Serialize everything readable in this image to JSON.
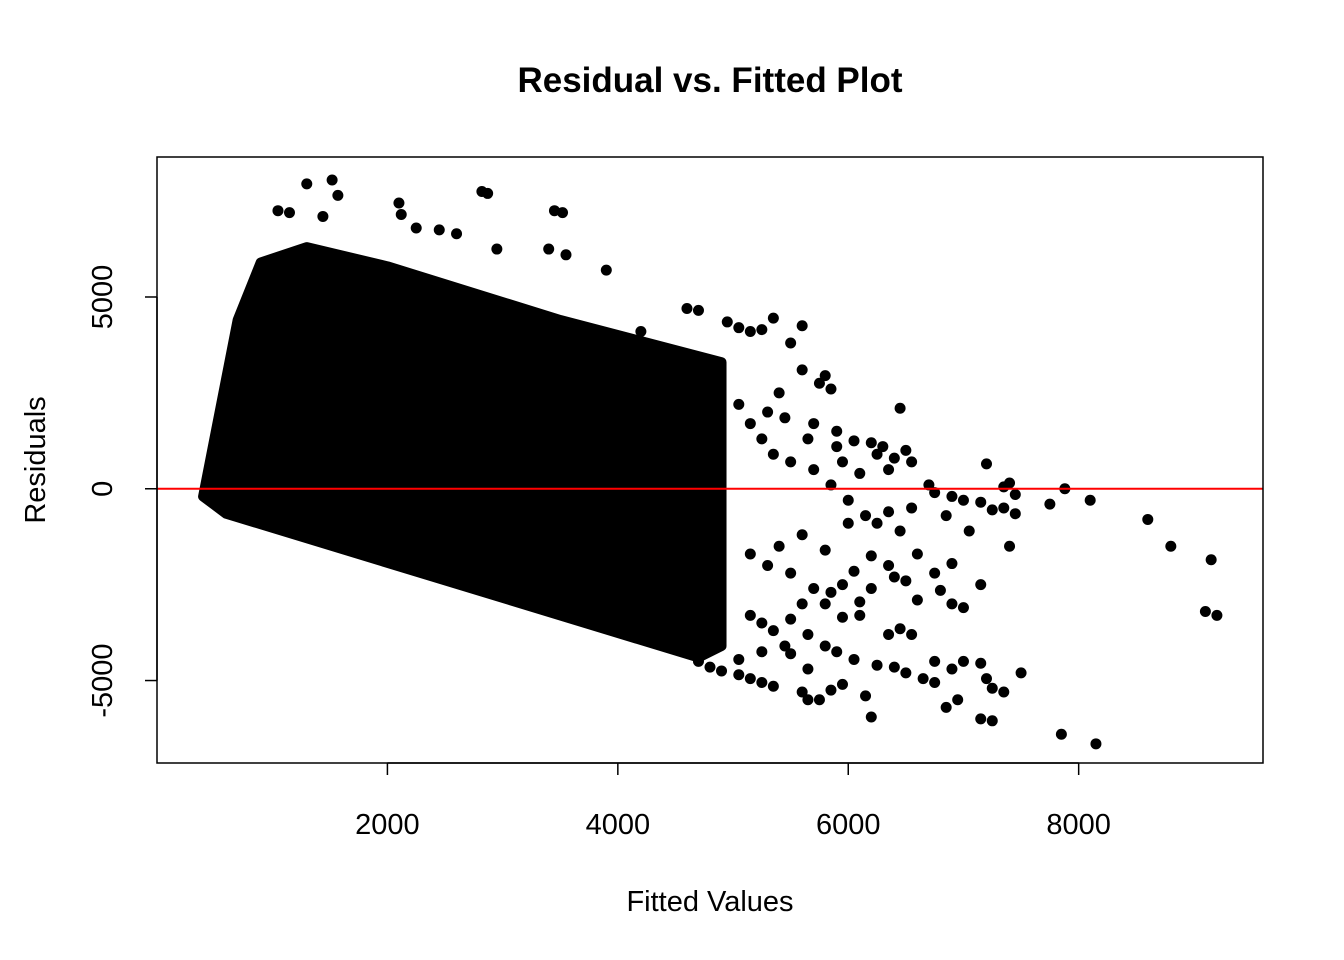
{
  "chart_data": {
    "type": "scatter",
    "title": "Residual vs. Fitted Plot",
    "xlabel": "Fitted Values",
    "ylabel": "Residuals",
    "xlim": [
      0,
      9600
    ],
    "ylim": [
      -7150,
      8650
    ],
    "x_ticks": [
      {
        "value": 2000,
        "label": "2000"
      },
      {
        "value": 4000,
        "label": "4000"
      },
      {
        "value": 6000,
        "label": "6000"
      },
      {
        "value": 8000,
        "label": "8000"
      }
    ],
    "y_ticks": [
      {
        "value": -5000,
        "label": "-5000"
      },
      {
        "value": 0,
        "label": "0"
      },
      {
        "value": 5000,
        "label": "5000"
      }
    ],
    "reference_line": {
      "y": 0,
      "color": "#ff0000"
    },
    "point_color": "#000000",
    "dense_region": {
      "description_free_polygon": [
        [
          400,
          -200
        ],
        [
          600,
          -650
        ],
        [
          4700,
          -4400
        ],
        [
          4900,
          -4100
        ],
        [
          4900,
          3300
        ],
        [
          3500,
          4400
        ],
        [
          2000,
          5800
        ],
        [
          1300,
          6300
        ],
        [
          900,
          5900
        ],
        [
          700,
          4400
        ]
      ]
    },
    "points": [
      {
        "x": 1300,
        "y": 7950
      },
      {
        "x": 1520,
        "y": 8050
      },
      {
        "x": 1570,
        "y": 7650
      },
      {
        "x": 2100,
        "y": 7450
      },
      {
        "x": 2120,
        "y": 7150
      },
      {
        "x": 2820,
        "y": 7750
      },
      {
        "x": 2870,
        "y": 7700
      },
      {
        "x": 3450,
        "y": 7250
      },
      {
        "x": 3520,
        "y": 7200
      },
      {
        "x": 1050,
        "y": 7250
      },
      {
        "x": 1150,
        "y": 7200
      },
      {
        "x": 1440,
        "y": 7100
      },
      {
        "x": 2250,
        "y": 6800
      },
      {
        "x": 2450,
        "y": 6750
      },
      {
        "x": 2600,
        "y": 6650
      },
      {
        "x": 2950,
        "y": 6250
      },
      {
        "x": 3400,
        "y": 6250
      },
      {
        "x": 3550,
        "y": 6100
      },
      {
        "x": 3900,
        "y": 5700
      },
      {
        "x": 4600,
        "y": 4700
      },
      {
        "x": 4700,
        "y": 4650
      },
      {
        "x": 4950,
        "y": 4350
      },
      {
        "x": 5050,
        "y": 4200
      },
      {
        "x": 5150,
        "y": 4100
      },
      {
        "x": 5250,
        "y": 4150
      },
      {
        "x": 5350,
        "y": 4450
      },
      {
        "x": 5500,
        "y": 3800
      },
      {
        "x": 5600,
        "y": 4250
      },
      {
        "x": 5600,
        "y": 3100
      },
      {
        "x": 5750,
        "y": 2750
      },
      {
        "x": 5800,
        "y": 2950
      },
      {
        "x": 5850,
        "y": 2600
      },
      {
        "x": 4200,
        "y": 4100
      },
      {
        "x": 5400,
        "y": 2500
      },
      {
        "x": 6450,
        "y": 2100
      },
      {
        "x": 5300,
        "y": 2000
      },
      {
        "x": 5700,
        "y": 1700
      },
      {
        "x": 5900,
        "y": 1500
      },
      {
        "x": 6050,
        "y": 1250
      },
      {
        "x": 6200,
        "y": 1200
      },
      {
        "x": 6300,
        "y": 1100
      },
      {
        "x": 6400,
        "y": 800
      },
      {
        "x": 6500,
        "y": 1000
      },
      {
        "x": 6550,
        "y": 700
      },
      {
        "x": 6350,
        "y": 500
      },
      {
        "x": 6100,
        "y": 400
      },
      {
        "x": 5950,
        "y": 700
      },
      {
        "x": 6700,
        "y": 100
      },
      {
        "x": 6750,
        "y": -100
      },
      {
        "x": 6900,
        "y": -200
      },
      {
        "x": 7000,
        "y": -300
      },
      {
        "x": 7200,
        "y": 650
      },
      {
        "x": 7350,
        "y": 50
      },
      {
        "x": 7400,
        "y": 150
      },
      {
        "x": 7450,
        "y": -150
      },
      {
        "x": 7150,
        "y": -350
      },
      {
        "x": 7250,
        "y": -550
      },
      {
        "x": 7350,
        "y": -500
      },
      {
        "x": 7450,
        "y": -650
      },
      {
        "x": 6850,
        "y": -700
      },
      {
        "x": 7050,
        "y": -1100
      },
      {
        "x": 7400,
        "y": -1500
      },
      {
        "x": 7750,
        "y": -400
      },
      {
        "x": 7880,
        "y": 0
      },
      {
        "x": 8100,
        "y": -300
      },
      {
        "x": 8600,
        "y": -800
      },
      {
        "x": 8800,
        "y": -1500
      },
      {
        "x": 9150,
        "y": -1850
      },
      {
        "x": 9100,
        "y": -3200
      },
      {
        "x": 9200,
        "y": -3300
      },
      {
        "x": 7850,
        "y": -6400
      },
      {
        "x": 8150,
        "y": -6650
      },
      {
        "x": 7150,
        "y": -2500
      },
      {
        "x": 6900,
        "y": -1950
      },
      {
        "x": 6750,
        "y": -2200
      },
      {
        "x": 6800,
        "y": -2650
      },
      {
        "x": 6900,
        "y": -3000
      },
      {
        "x": 7000,
        "y": -3100
      },
      {
        "x": 6600,
        "y": -2900
      },
      {
        "x": 6400,
        "y": -2300
      },
      {
        "x": 6500,
        "y": -2400
      },
      {
        "x": 6200,
        "y": -1750
      },
      {
        "x": 6050,
        "y": -2150
      },
      {
        "x": 5950,
        "y": -2500
      },
      {
        "x": 5850,
        "y": -2700
      },
      {
        "x": 6100,
        "y": -2950
      },
      {
        "x": 6100,
        "y": -3300
      },
      {
        "x": 6350,
        "y": -3800
      },
      {
        "x": 6450,
        "y": -3650
      },
      {
        "x": 6550,
        "y": -3800
      },
      {
        "x": 6750,
        "y": -4500
      },
      {
        "x": 6650,
        "y": -4950
      },
      {
        "x": 6750,
        "y": -5050
      },
      {
        "x": 6500,
        "y": -4800
      },
      {
        "x": 6400,
        "y": -4650
      },
      {
        "x": 6250,
        "y": -4600
      },
      {
        "x": 6050,
        "y": -4450
      },
      {
        "x": 5900,
        "y": -4250
      },
      {
        "x": 6900,
        "y": -4700
      },
      {
        "x": 7000,
        "y": -4500
      },
      {
        "x": 7150,
        "y": -4550
      },
      {
        "x": 7200,
        "y": -4950
      },
      {
        "x": 7250,
        "y": -5200
      },
      {
        "x": 7350,
        "y": -5300
      },
      {
        "x": 7500,
        "y": -4800
      },
      {
        "x": 6950,
        "y": -5500
      },
      {
        "x": 6850,
        "y": -5700
      },
      {
        "x": 7150,
        "y": -6000
      },
      {
        "x": 7250,
        "y": -6050
      },
      {
        "x": 6200,
        "y": -5950
      },
      {
        "x": 6150,
        "y": -5400
      },
      {
        "x": 5950,
        "y": -5100
      },
      {
        "x": 5850,
        "y": -5250
      },
      {
        "x": 5750,
        "y": -5500
      },
      {
        "x": 5650,
        "y": -5500
      },
      {
        "x": 5600,
        "y": -5300
      },
      {
        "x": 5350,
        "y": -5150
      },
      {
        "x": 5250,
        "y": -5050
      },
      {
        "x": 5150,
        "y": -4950
      },
      {
        "x": 5050,
        "y": -4850
      },
      {
        "x": 4900,
        "y": -4750
      },
      {
        "x": 4800,
        "y": -4650
      },
      {
        "x": 4700,
        "y": -4500
      },
      {
        "x": 5650,
        "y": -4700
      },
      {
        "x": 5800,
        "y": -4100
      },
      {
        "x": 5450,
        "y": -4100
      },
      {
        "x": 5350,
        "y": -3700
      },
      {
        "x": 5250,
        "y": -3500
      },
      {
        "x": 5150,
        "y": -3300
      },
      {
        "x": 5500,
        "y": -3400
      },
      {
        "x": 5600,
        "y": -3000
      },
      {
        "x": 5700,
        "y": -2600
      },
      {
        "x": 5500,
        "y": -2200
      },
      {
        "x": 5300,
        "y": -2000
      },
      {
        "x": 5150,
        "y": -1700
      },
      {
        "x": 5400,
        "y": -1500
      },
      {
        "x": 5600,
        "y": -1200
      },
      {
        "x": 5800,
        "y": -1600
      },
      {
        "x": 6000,
        "y": -900
      },
      {
        "x": 6150,
        "y": -700
      },
      {
        "x": 6350,
        "y": -600
      },
      {
        "x": 6550,
        "y": -500
      },
      {
        "x": 6000,
        "y": -300
      },
      {
        "x": 5850,
        "y": 100
      },
      {
        "x": 5700,
        "y": 500
      },
      {
        "x": 5500,
        "y": 700
      },
      {
        "x": 5350,
        "y": 900
      },
      {
        "x": 5250,
        "y": 1300
      },
      {
        "x": 5150,
        "y": 1700
      },
      {
        "x": 5050,
        "y": 2200
      },
      {
        "x": 5450,
        "y": 1850
      },
      {
        "x": 5650,
        "y": 1300
      },
      {
        "x": 5900,
        "y": 1100
      },
      {
        "x": 6250,
        "y": 900
      },
      {
        "x": 6250,
        "y": -900
      },
      {
        "x": 6450,
        "y": -1100
      },
      {
        "x": 6600,
        "y": -1700
      },
      {
        "x": 6350,
        "y": -2000
      },
      {
        "x": 6200,
        "y": -2600
      },
      {
        "x": 5950,
        "y": -3350
      },
      {
        "x": 5800,
        "y": -3000
      },
      {
        "x": 5650,
        "y": -3800
      },
      {
        "x": 5500,
        "y": -4300
      },
      {
        "x": 5250,
        "y": -4250
      },
      {
        "x": 5050,
        "y": -4450
      }
    ]
  }
}
